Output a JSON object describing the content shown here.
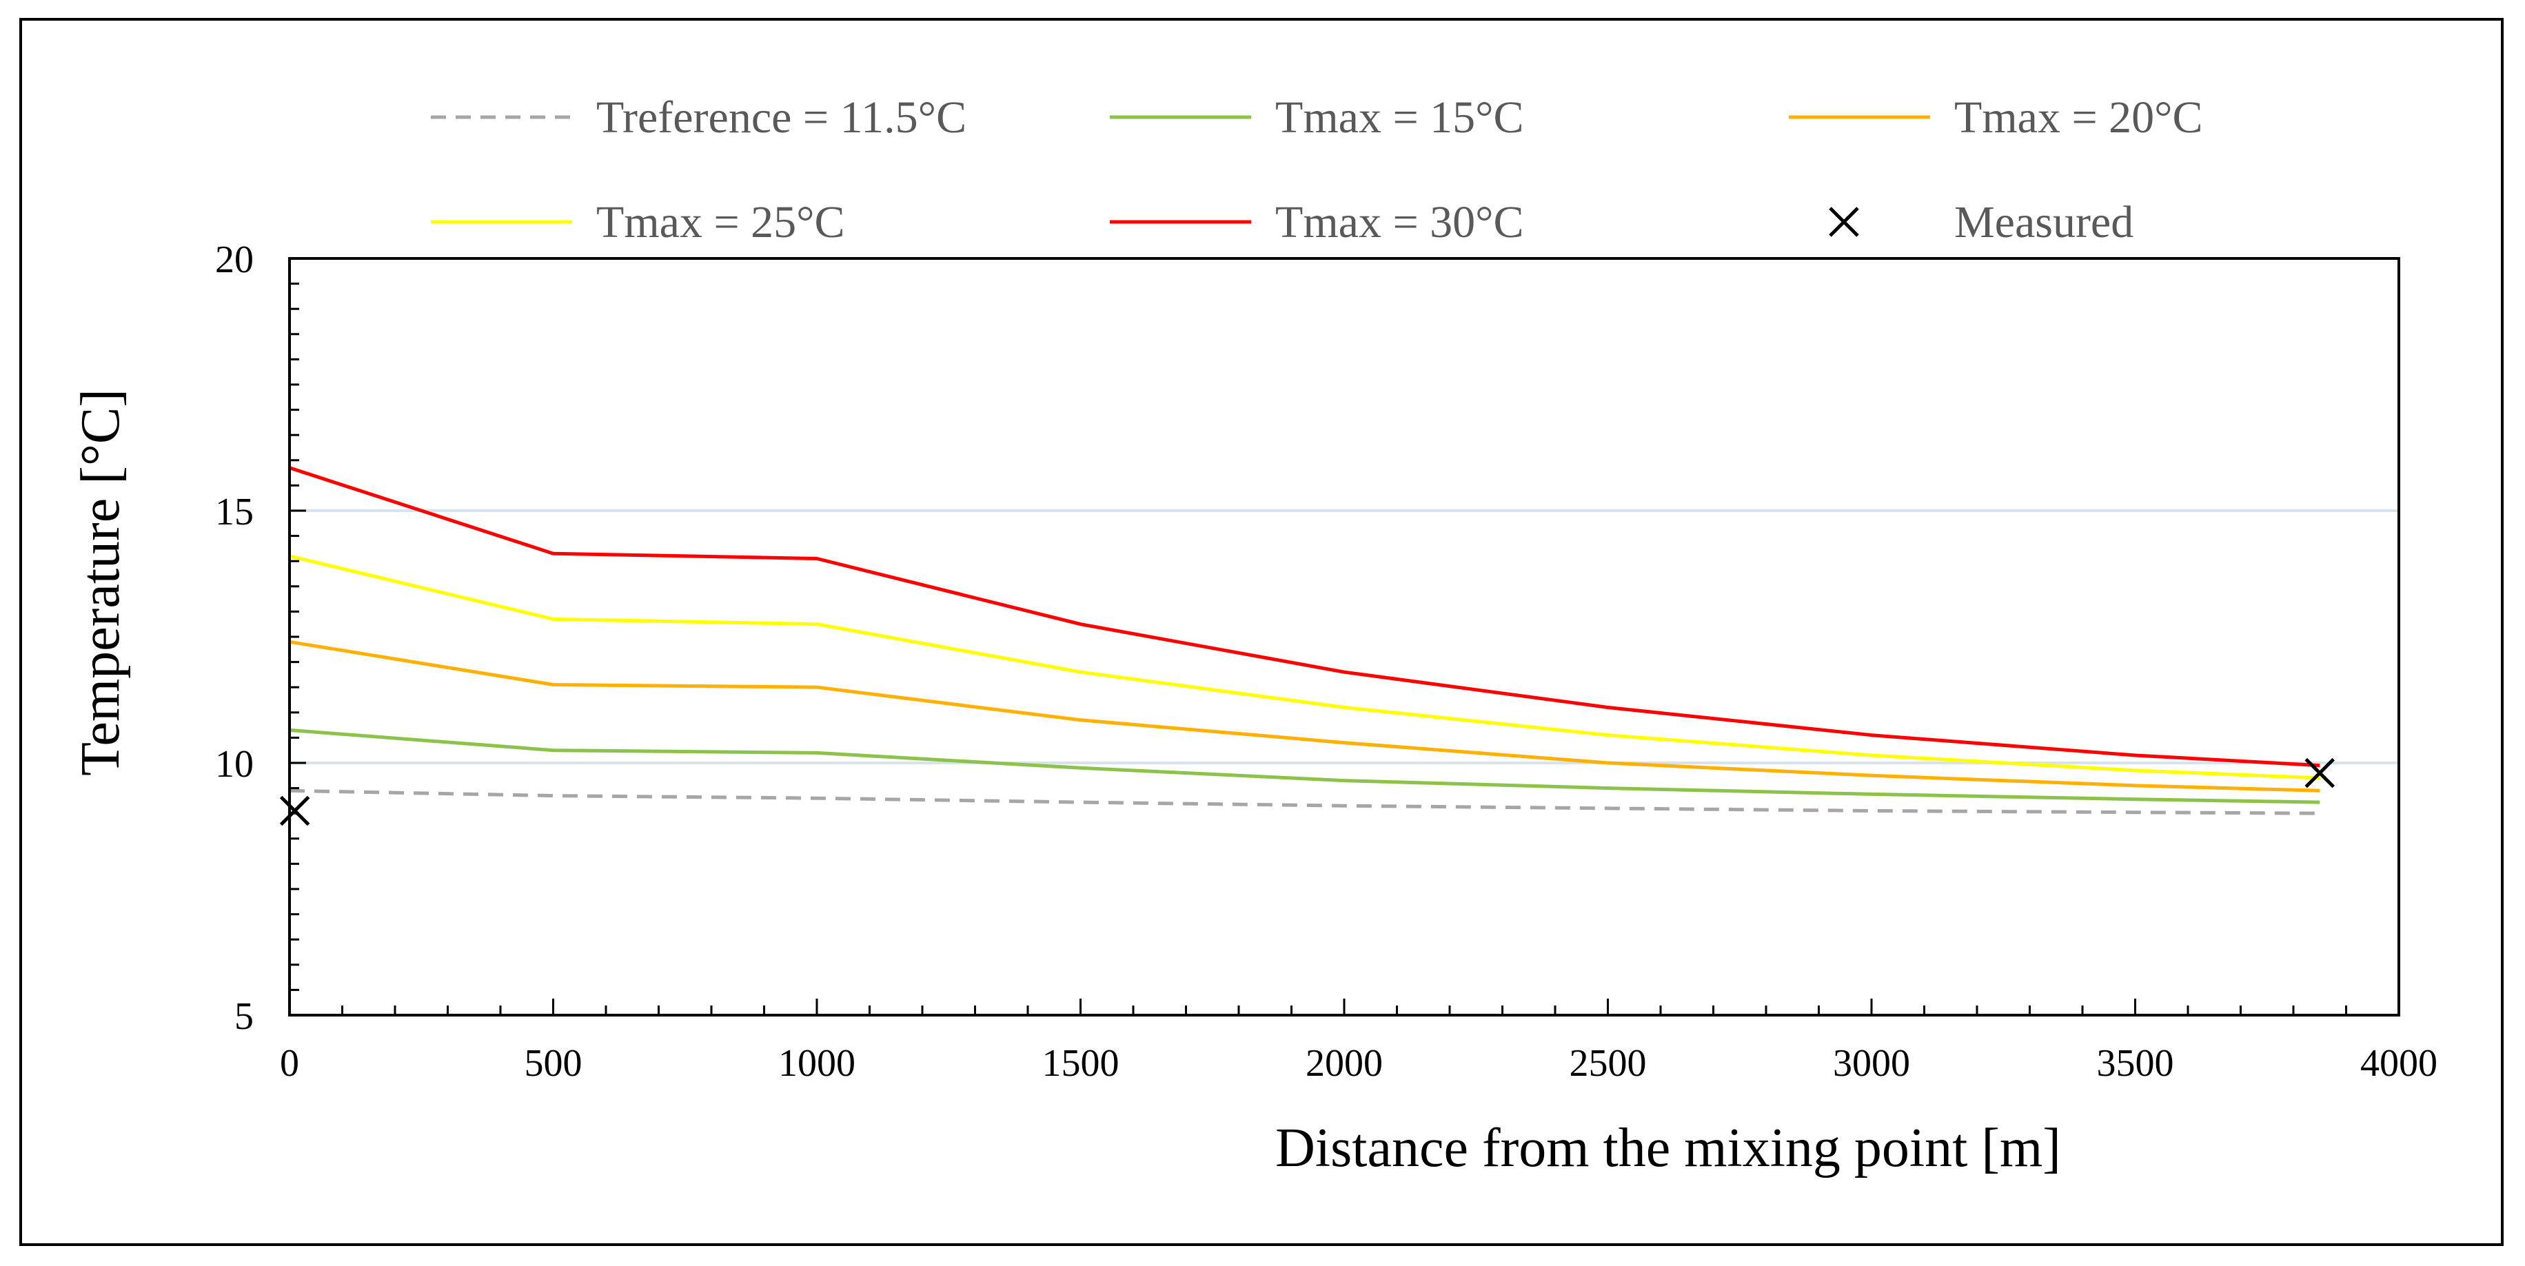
{
  "chart_data": {
    "type": "line",
    "title": "",
    "xlabel": "Distance from the mixing point [m]",
    "ylabel": "Temperature [°C]",
    "xlim": [
      0,
      4000
    ],
    "ylim": [
      5,
      20
    ],
    "xticks": [
      0,
      500,
      1000,
      1500,
      2000,
      2500,
      3000,
      3500,
      4000
    ],
    "yticks": [
      5,
      10,
      15,
      20
    ],
    "xtick_labels": [
      "0",
      "500",
      "1000",
      "1500",
      "2000",
      "2500",
      "3000",
      "3500",
      "4000"
    ],
    "ytick_labels": [
      "5",
      "10",
      "15",
      "20"
    ],
    "grid": "horizontal",
    "legend_position": "top",
    "x": [
      0,
      500,
      1000,
      1500,
      2000,
      2500,
      3000,
      3500,
      3850
    ],
    "series": [
      {
        "name": "Treference = 11.5°C",
        "color": "#a6a6a6",
        "style": "dashed",
        "values": [
          9.45,
          9.35,
          9.3,
          9.22,
          9.15,
          9.1,
          9.05,
          9.02,
          9.0
        ]
      },
      {
        "name": "Tmax = 15°C",
        "color": "#8bc34a",
        "style": "solid",
        "values": [
          10.65,
          10.25,
          10.2,
          9.9,
          9.65,
          9.5,
          9.38,
          9.28,
          9.22
        ]
      },
      {
        "name": "Tmax = 20°C",
        "color": "#ffb000",
        "style": "solid",
        "values": [
          12.4,
          11.55,
          11.5,
          10.85,
          10.4,
          10.0,
          9.75,
          9.55,
          9.45
        ]
      },
      {
        "name": "Tmax = 25°C",
        "color": "#ffff00",
        "style": "solid",
        "values": [
          14.1,
          12.85,
          12.75,
          11.8,
          11.1,
          10.55,
          10.15,
          9.85,
          9.7
        ]
      },
      {
        "name": "Tmax  = 30°C",
        "color": "#ff0000",
        "style": "solid",
        "values": [
          15.85,
          14.15,
          14.05,
          12.75,
          11.8,
          11.1,
          10.55,
          10.15,
          9.95
        ]
      }
    ],
    "measured": {
      "name": "Measured",
      "color": "#000000",
      "points": [
        {
          "x": 10,
          "y": 9.05
        },
        {
          "x": 3850,
          "y": 9.8
        }
      ]
    }
  }
}
